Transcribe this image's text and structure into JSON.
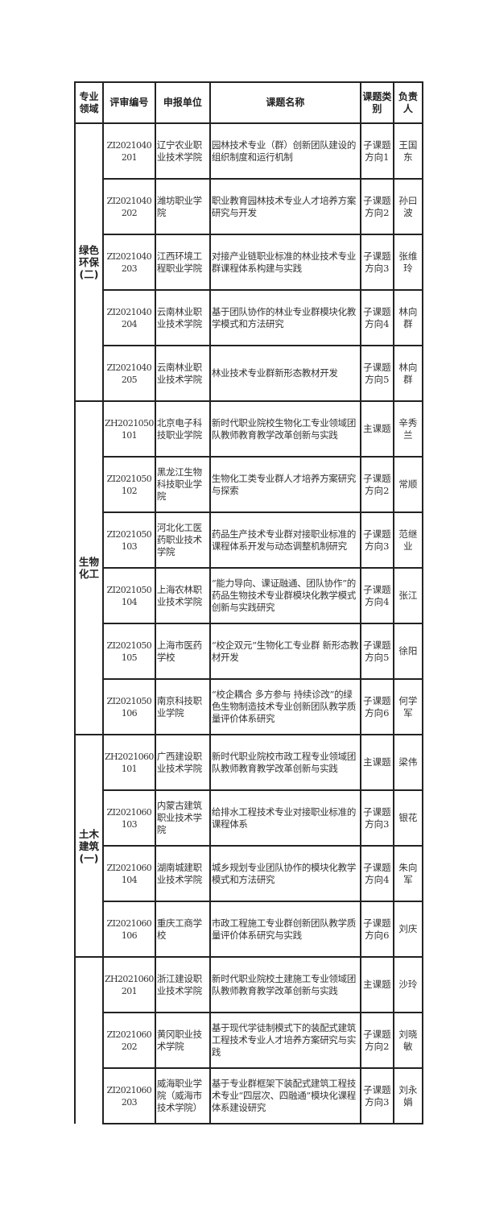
{
  "headers": [
    "专业领域",
    "评审编号",
    "申报单位",
    "课题名称",
    "课题类别",
    "负责人"
  ],
  "groups": [
    {
      "field": "绿色环保(二)",
      "rows": [
        {
          "id": "ZI2021040 201",
          "unit": "辽宁农业职业技术学院",
          "topic": "园林技术专业（群）创新团队建设的组织制度和运行机制",
          "type": "子课题方向1",
          "lead": "王国东"
        },
        {
          "id": "ZI2021040 202",
          "unit": "潍坊职业学院",
          "topic": "职业教育园林技术专业人才培养方案研究与开发",
          "type": "子课题方向2",
          "lead": "孙曰波"
        },
        {
          "id": "ZI2021040 203",
          "unit": "江西环境工程职业学院",
          "topic": "对接产业链职业标准的林业技术专业群课程体系构建与实践",
          "type": "子课题方向3",
          "lead": "张维玲"
        },
        {
          "id": "ZI2021040 204",
          "unit": "云南林业职业技术学院",
          "topic": "基于团队协作的林业专业群模块化教学模式和方法研究",
          "type": "子课题方向4",
          "lead": "林向群"
        },
        {
          "id": "ZI2021040 205",
          "unit": "云南林业职业技术学院",
          "topic": "林业技术专业群新形态教材开发",
          "type": "子课题方向5",
          "lead": "林向群"
        }
      ]
    },
    {
      "field": "生物化工",
      "rows": [
        {
          "id": "ZH2021050 101",
          "unit": "北京电子科技职业学院",
          "topic": "新时代职业院校生物化工专业领域团队教师教育教学改革创新与实践",
          "type": "主课题",
          "lead": "辛秀兰"
        },
        {
          "id": "ZI2021050 102",
          "unit": "黑龙江生物科技职业学院",
          "topic": "生物化工类专业群人才培养方案研究与探索",
          "type": "子课题方向2",
          "lead": "常顺"
        },
        {
          "id": "ZI2021050 103",
          "unit": "河北化工医药职业技术学院",
          "topic": "药品生产技术专业群对接职业标准的课程体系开发与动态调整机制研究",
          "type": "子课题方向3",
          "lead": "范继业"
        },
        {
          "id": "ZI2021050 104",
          "unit": "上海农林职业技术学院",
          "topic": "“能力导向、课证融通、团队协作”的药品生物技术专业群模块化教学模式创新与实践研究",
          "type": "子课题方向4",
          "lead": "张江"
        },
        {
          "id": "ZI2021050 105",
          "unit": "上海市医药学校",
          "topic": "“校企双元”生物化工专业群 新形态教材开发",
          "type": "子课题方向5",
          "lead": "徐阳"
        },
        {
          "id": "ZI2021050 106",
          "unit": "南京科技职业学院",
          "topic": "“校企耦合 多方参与 持续诊改”的绿色生物制造技术专业创新团队教学质量评价体系研究",
          "type": "子课题方向6",
          "lead": "何学军"
        }
      ]
    },
    {
      "field": "土木建筑(一)",
      "rows": [
        {
          "id": "ZH2021060 101",
          "unit": "广西建设职业技术学院",
          "topic": "新时代职业院校市政工程专业领域团队教师教育教学改革创新与实践",
          "type": "主课题",
          "lead": "梁伟"
        },
        {
          "id": "ZI2021060 103",
          "unit": "内蒙古建筑职业技术学院",
          "topic": "给排水工程技术专业对接职业标准的课程体系",
          "type": "子课题方向3",
          "lead": "银花"
        },
        {
          "id": "ZI2021060 104",
          "unit": "湖南城建职业技术学院",
          "topic": "城乡规划专业团队协作的模块化教学模式和方法研究",
          "type": "子课题方向4",
          "lead": "朱向军"
        },
        {
          "id": "ZI2021060 106",
          "unit": "重庆工商学校",
          "topic": "市政工程施工专业群创新团队教学质量评价体系研究与实践",
          "type": "子课题方向6",
          "lead": "刘庆"
        }
      ]
    },
    {
      "field": "",
      "rows": [
        {
          "id": "ZH2021060 201",
          "unit": "浙江建设职业技术学院",
          "topic": "新时代职业院校土建施工专业领域团队教师教育教学改革创新与实践",
          "type": "主课题",
          "lead": "沙玲"
        },
        {
          "id": "ZI2021060 202",
          "unit": "黄冈职业技术学院",
          "topic": "基于现代学徒制模式下的装配式建筑工程技术专业人才培养方案研究与实践",
          "type": "子课题方向2",
          "lead": "刘晓敏"
        },
        {
          "id": "ZI2021060 203",
          "unit": "威海职业学院（威海市技术学院）",
          "topic": "基于专业群框架下装配式建筑工程技术专业“四层次、四融通”模块化课程体系建设研究",
          "type": "子课题方向3",
          "lead": "刘永娟"
        }
      ]
    }
  ]
}
